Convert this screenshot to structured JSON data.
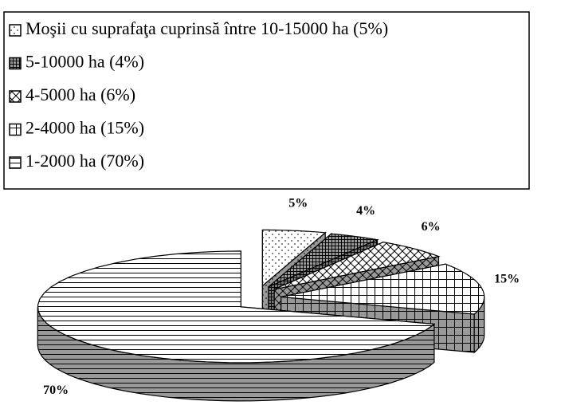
{
  "chart_data": {
    "type": "pie",
    "categories": [
      "Moşii cu suprafaţa cuprinsă între 10-15000 ha (5%)",
      "5-10000 ha (4%)",
      "4-5000 ha (6%)",
      "2-4000 ha (15%)",
      "1-2000 ha (70%)"
    ],
    "values": [
      5,
      4,
      6,
      15,
      70
    ],
    "value_labels": [
      "5%",
      "4%",
      "6%",
      "15%",
      "70%"
    ],
    "patterns": [
      "dots",
      "dense-grid",
      "diagonal-cross",
      "grid",
      "horizontal-lines"
    ],
    "color": "#000000",
    "three_d": true,
    "exploded": true,
    "legend": "top"
  }
}
